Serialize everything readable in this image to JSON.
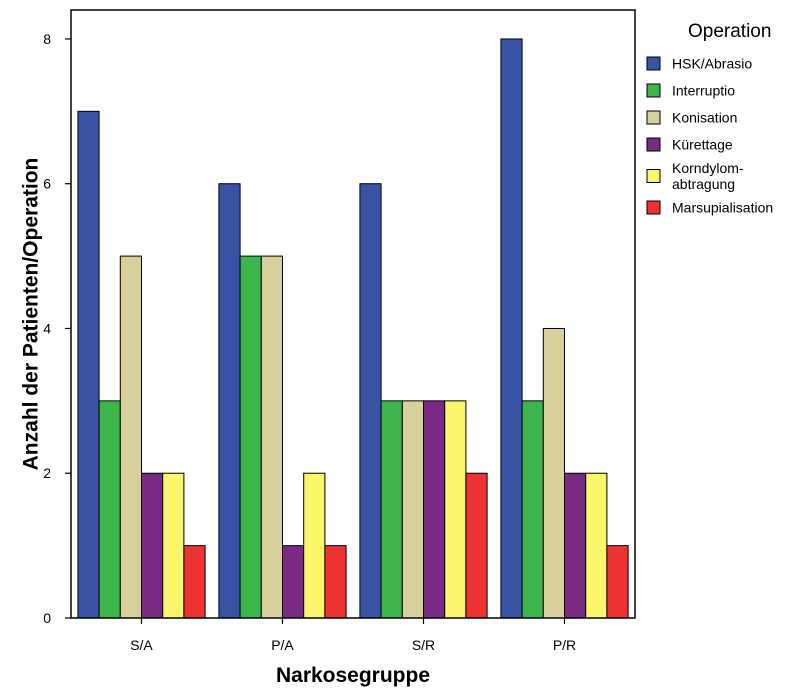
{
  "chart_data": {
    "type": "bar",
    "title": "",
    "xlabel": "Narkosegruppe",
    "ylabel": "Anzahl der Patienten/Operation",
    "categories": [
      "S/A",
      "P/A",
      "S/R",
      "P/R"
    ],
    "ylim": [
      0,
      8.4
    ],
    "yticks": [
      0,
      2,
      4,
      6,
      8
    ],
    "legend_title": "Operation",
    "legend_position": "right",
    "grid": false,
    "series": [
      {
        "name": "HSK/Abrasio",
        "color": "#3953a4",
        "values": [
          7,
          6,
          6,
          8
        ]
      },
      {
        "name": "Interruptio",
        "color": "#3cb54a",
        "values": [
          3,
          5,
          3,
          3
        ]
      },
      {
        "name": "Konisation",
        "color": "#d7cf9c",
        "values": [
          5,
          5,
          3,
          4
        ]
      },
      {
        "name": "Kürettage",
        "color": "#7a2a82",
        "values": [
          2,
          1,
          3,
          2
        ]
      },
      {
        "name": "Korndylom-\nabtragung",
        "color": "#fbf66b",
        "values": [
          2,
          2,
          3,
          2
        ]
      },
      {
        "name": "Marsupialisation",
        "color": "#ee3131",
        "values": [
          1,
          1,
          2,
          1
        ]
      }
    ]
  }
}
